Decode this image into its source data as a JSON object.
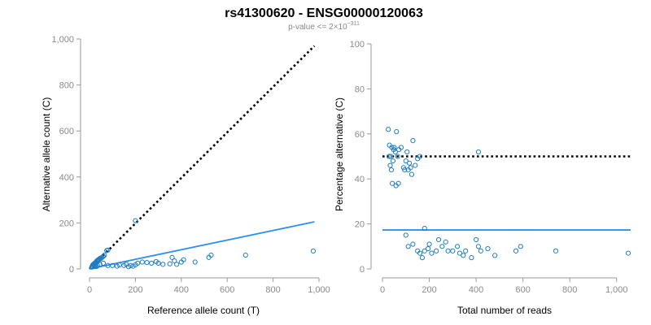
{
  "title": "rs41300620 - ENSG00000120063",
  "subtitle": {
    "prefix": "p-value <= 2",
    "times": "×",
    "base": "10",
    "exponent": "−311"
  },
  "colors": {
    "points": "#1f7ec4",
    "fit": "#2f8ff0",
    "reference": "#000000",
    "axis": "#9a9a9a"
  },
  "chart_data": [
    {
      "type": "scatter",
      "panel": "left",
      "xlabel": "Reference allele count (T)",
      "ylabel": "Alternative allele count (C)",
      "xlim": [
        0,
        1000
      ],
      "ylim": [
        0,
        1000
      ],
      "xticks": [
        0,
        200,
        400,
        600,
        800,
        1000
      ],
      "xtick_labels": [
        "0",
        "200",
        "400",
        "600",
        "800",
        "1,000"
      ],
      "yticks": [
        0,
        200,
        400,
        600,
        800,
        1000
      ],
      "ytick_labels": [
        "0",
        "200",
        "400",
        "600",
        "800",
        "1,000"
      ],
      "reference_line": {
        "style": "dotted",
        "from": [
          0,
          0
        ],
        "to": [
          980,
          970
        ]
      },
      "fit_line": {
        "style": "solid",
        "from": [
          0,
          0
        ],
        "to": [
          980,
          205
        ]
      },
      "points": [
        [
          200,
          210
        ],
        [
          12,
          12
        ],
        [
          15,
          18
        ],
        [
          18,
          20
        ],
        [
          20,
          15
        ],
        [
          22,
          25
        ],
        [
          25,
          22
        ],
        [
          28,
          30
        ],
        [
          30,
          28
        ],
        [
          32,
          35
        ],
        [
          35,
          32
        ],
        [
          38,
          40
        ],
        [
          40,
          38
        ],
        [
          42,
          42
        ],
        [
          45,
          45
        ],
        [
          48,
          45
        ],
        [
          50,
          48
        ],
        [
          55,
          50
        ],
        [
          60,
          55
        ],
        [
          65,
          60
        ],
        [
          75,
          80
        ],
        [
          80,
          82
        ],
        [
          10,
          8
        ],
        [
          14,
          10
        ],
        [
          20,
          10
        ],
        [
          25,
          12
        ],
        [
          30,
          10
        ],
        [
          35,
          15
        ],
        [
          45,
          20
        ],
        [
          60,
          25
        ],
        [
          80,
          15
        ],
        [
          100,
          15
        ],
        [
          120,
          12
        ],
        [
          130,
          18
        ],
        [
          150,
          15
        ],
        [
          160,
          20
        ],
        [
          170,
          10
        ],
        [
          180,
          15
        ],
        [
          190,
          12
        ],
        [
          200,
          18
        ],
        [
          210,
          25
        ],
        [
          230,
          30
        ],
        [
          250,
          28
        ],
        [
          270,
          25
        ],
        [
          290,
          32
        ],
        [
          300,
          25
        ],
        [
          320,
          20
        ],
        [
          350,
          22
        ],
        [
          360,
          50
        ],
        [
          370,
          35
        ],
        [
          380,
          20
        ],
        [
          400,
          30
        ],
        [
          410,
          40
        ],
        [
          460,
          30
        ],
        [
          520,
          50
        ],
        [
          530,
          60
        ],
        [
          680,
          60
        ],
        [
          975,
          78
        ]
      ]
    },
    {
      "type": "scatter",
      "panel": "right",
      "xlabel": "Total number of reads",
      "ylabel": "Percentage alternative (C)",
      "xlim": [
        0,
        1060
      ],
      "ylim": [
        0,
        100
      ],
      "xticks": [
        0,
        200,
        400,
        600,
        800,
        1000
      ],
      "xtick_labels": [
        "0",
        "200",
        "400",
        "600",
        "800",
        "1,000"
      ],
      "yticks": [
        0,
        20,
        40,
        60,
        80,
        100
      ],
      "ytick_labels": [
        "0",
        "20",
        "40",
        "60",
        "80",
        "100"
      ],
      "reference_line": {
        "style": "dotted",
        "y": 50
      },
      "fit_line": {
        "style": "solid",
        "y": 17.3
      },
      "points": [
        [
          25,
          62
        ],
        [
          30,
          55
        ],
        [
          35,
          50
        ],
        [
          40,
          54
        ],
        [
          45,
          48
        ],
        [
          50,
          54
        ],
        [
          55,
          52
        ],
        [
          60,
          61
        ],
        [
          65,
          50
        ],
        [
          70,
          53
        ],
        [
          80,
          54
        ],
        [
          90,
          45
        ],
        [
          100,
          48
        ],
        [
          105,
          52
        ],
        [
          110,
          44
        ],
        [
          115,
          47
        ],
        [
          120,
          45
        ],
        [
          130,
          57
        ],
        [
          140,
          46
        ],
        [
          150,
          49
        ],
        [
          160,
          50
        ],
        [
          28,
          50
        ],
        [
          33,
          46
        ],
        [
          38,
          44
        ],
        [
          42,
          38
        ],
        [
          48,
          53
        ],
        [
          58,
          37
        ],
        [
          68,
          38
        ],
        [
          95,
          44
        ],
        [
          125,
          42
        ],
        [
          410,
          52
        ],
        [
          180,
          18
        ],
        [
          100,
          15
        ],
        [
          110,
          10
        ],
        [
          130,
          11
        ],
        [
          150,
          8
        ],
        [
          160,
          7
        ],
        [
          170,
          5
        ],
        [
          180,
          8
        ],
        [
          195,
          9
        ],
        [
          200,
          11
        ],
        [
          210,
          7
        ],
        [
          230,
          8
        ],
        [
          240,
          13
        ],
        [
          255,
          10
        ],
        [
          270,
          12
        ],
        [
          280,
          8
        ],
        [
          300,
          8
        ],
        [
          320,
          10
        ],
        [
          330,
          7
        ],
        [
          345,
          6
        ],
        [
          355,
          8
        ],
        [
          380,
          5
        ],
        [
          400,
          13
        ],
        [
          410,
          10
        ],
        [
          420,
          8
        ],
        [
          450,
          9
        ],
        [
          480,
          6
        ],
        [
          570,
          8
        ],
        [
          590,
          10
        ],
        [
          740,
          8
        ],
        [
          1050,
          7
        ]
      ]
    }
  ]
}
